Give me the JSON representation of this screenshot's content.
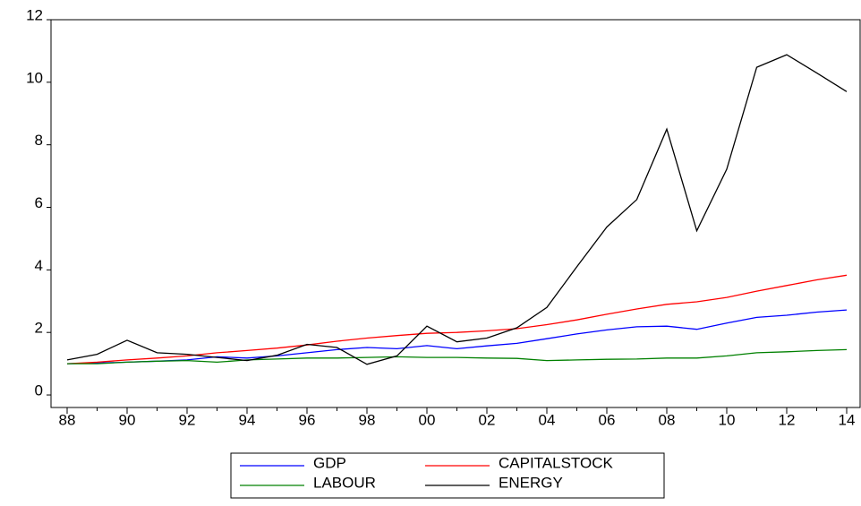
{
  "chart_data": {
    "type": "line",
    "categories": [
      "88",
      null,
      "90",
      null,
      "92",
      null,
      "94",
      null,
      "96",
      null,
      "98",
      null,
      "00",
      null,
      "02",
      null,
      "04",
      null,
      "06",
      null,
      "08",
      null,
      "10",
      null,
      "12",
      null,
      "14"
    ],
    "series": [
      {
        "name": "GDP",
        "color": "#0000ff",
        "values": [
          1.0,
          1.02,
          1.05,
          1.08,
          1.12,
          1.22,
          1.18,
          1.25,
          1.35,
          1.45,
          1.52,
          1.48,
          1.58,
          1.48,
          1.57,
          1.65,
          1.8,
          1.95,
          2.08,
          2.18,
          2.2,
          2.1,
          2.3,
          2.48,
          2.55,
          2.65,
          2.72
        ]
      },
      {
        "name": "CAPITALSTOCK",
        "color": "#ff0000",
        "values": [
          1.0,
          1.05,
          1.12,
          1.18,
          1.25,
          1.35,
          1.42,
          1.5,
          1.6,
          1.72,
          1.82,
          1.9,
          1.97,
          2.0,
          2.05,
          2.12,
          2.25,
          2.4,
          2.58,
          2.75,
          2.9,
          2.98,
          3.12,
          3.32,
          3.5,
          3.68,
          3.83
        ]
      },
      {
        "name": "LABOUR",
        "color": "#008000",
        "values": [
          1.0,
          1.0,
          1.05,
          1.08,
          1.1,
          1.05,
          1.12,
          1.15,
          1.18,
          1.18,
          1.2,
          1.22,
          1.2,
          1.2,
          1.18,
          1.17,
          1.1,
          1.12,
          1.14,
          1.15,
          1.18,
          1.18,
          1.25,
          1.35,
          1.38,
          1.42,
          1.45
        ]
      },
      {
        "name": "ENERGY",
        "color": "#000000",
        "values": [
          1.12,
          1.3,
          1.75,
          1.35,
          1.3,
          1.2,
          1.1,
          1.27,
          1.62,
          1.52,
          0.98,
          1.25,
          2.2,
          1.7,
          1.82,
          2.15,
          2.8,
          4.1,
          5.37,
          6.25,
          8.5,
          5.25,
          7.22,
          10.48,
          10.88,
          10.3,
          9.7
        ]
      }
    ],
    "ylim": [
      -0.4,
      12
    ],
    "yticks": [
      0,
      2,
      4,
      6,
      8,
      10,
      12
    ]
  }
}
